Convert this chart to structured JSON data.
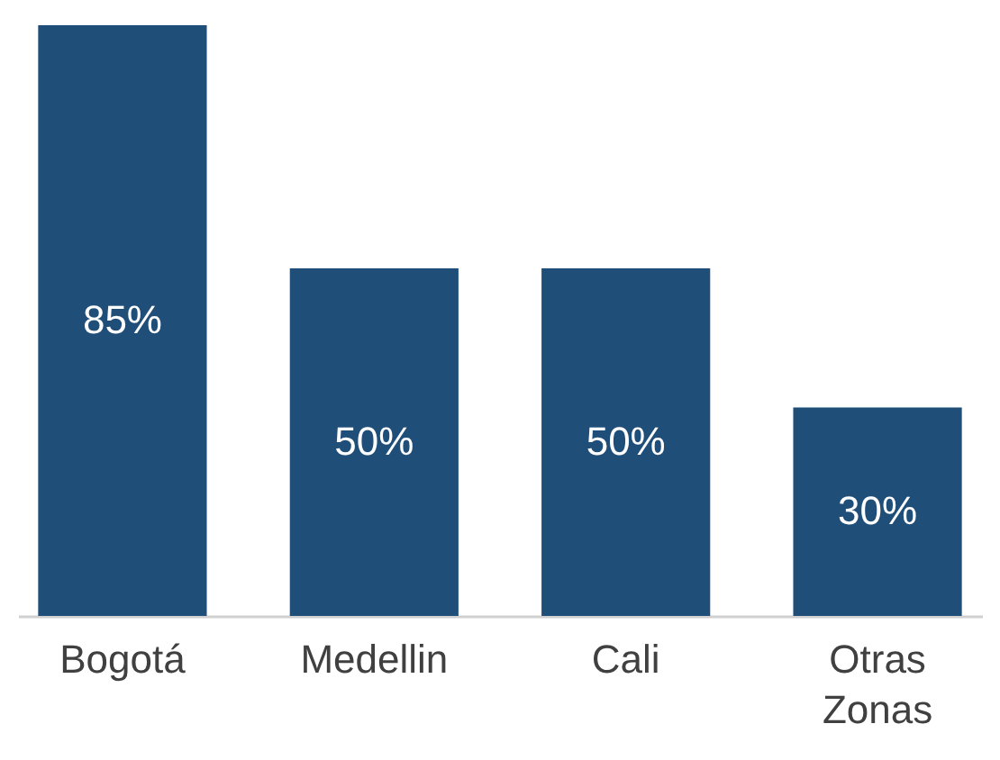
{
  "chart_data": {
    "type": "bar",
    "categories": [
      "Bogotá",
      "Medellin",
      "Cali",
      "Otras Zonas"
    ],
    "values": [
      85,
      50,
      50,
      30
    ],
    "color": "#1f4e79",
    "value_labels": [
      "85%",
      "50%",
      "50%",
      "30%"
    ]
  }
}
